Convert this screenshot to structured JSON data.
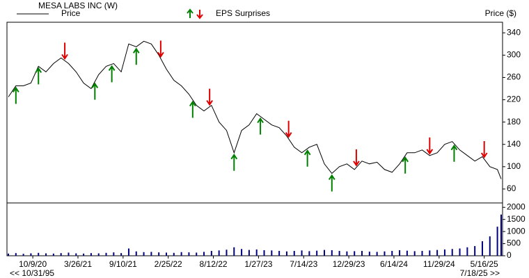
{
  "chart_data": {
    "type": "line",
    "title": "MESA LABS INC (W)",
    "y_label": "Price ($)",
    "eps_label": "EPS Surprises",
    "nav_start": "<< 10/31/95",
    "nav_end": "7/18/25 >>",
    "x": [
      "7/10/20",
      "8/7/20",
      "9/4/20",
      "10/2/20",
      "10/30/20",
      "11/27/20",
      "12/25/20",
      "1/22/21",
      "2/19/21",
      "3/19/21",
      "4/16/21",
      "5/14/21",
      "6/11/21",
      "7/9/21",
      "8/6/21",
      "9/3/21",
      "10/1/21",
      "10/29/21",
      "11/26/21",
      "12/24/21",
      "1/21/22",
      "2/18/22",
      "3/18/22",
      "4/15/22",
      "5/13/22",
      "6/10/22",
      "7/8/22",
      "8/5/22",
      "9/2/22",
      "9/30/22",
      "10/28/22",
      "11/25/22",
      "12/23/22",
      "1/20/23",
      "2/17/23",
      "3/17/23",
      "4/14/23",
      "5/12/23",
      "6/9/23",
      "7/7/23",
      "8/4/23",
      "9/1/23",
      "9/29/23",
      "10/27/23",
      "11/24/23",
      "12/22/23",
      "1/19/24",
      "2/16/24",
      "3/15/24",
      "4/12/24",
      "5/10/24",
      "6/7/24",
      "7/5/24",
      "8/2/24",
      "8/30/24",
      "9/27/24",
      "10/25/24",
      "11/22/24",
      "12/20/24",
      "1/17/25",
      "2/14/25",
      "3/14/25",
      "4/11/25",
      "5/9/25",
      "6/6/25",
      "7/4/25",
      "7/18/25"
    ],
    "series": [
      {
        "name": "Price",
        "color": "#000000",
        "values": [
          225,
          245,
          245,
          250,
          280,
          270,
          285,
          295,
          285,
          270,
          250,
          240,
          265,
          280,
          285,
          270,
          320,
          315,
          325,
          320,
          300,
          275,
          255,
          245,
          230,
          210,
          200,
          210,
          180,
          165,
          125,
          165,
          175,
          195,
          185,
          175,
          170,
          155,
          135,
          125,
          135,
          140,
          105,
          88,
          100,
          105,
          95,
          110,
          105,
          108,
          95,
          90,
          105,
          125,
          125,
          130,
          120,
          125,
          140,
          145,
          130,
          120,
          110,
          118,
          100,
          95,
          78
        ]
      }
    ],
    "xlim": [
      "7/10/20",
      "7/18/25"
    ],
    "xticks": [
      "10/9/20",
      "3/26/21",
      "9/10/21",
      "2/25/22",
      "8/12/22",
      "1/27/23",
      "7/14/23",
      "12/29/23",
      "6/14/24",
      "11/29/24",
      "5/16/25"
    ],
    "ylim": [
      35,
      359
    ],
    "yticks": [
      60,
      100,
      140,
      180,
      220,
      260,
      300,
      340
    ],
    "volume": {
      "color": "#000080",
      "values": [
        90,
        110,
        80,
        100,
        120,
        100,
        90,
        110,
        130,
        100,
        90,
        110,
        100,
        120,
        140,
        110,
        300,
        180,
        150,
        160,
        140,
        130,
        120,
        150,
        140,
        130,
        160,
        200,
        220,
        250,
        350,
        280,
        240,
        260,
        230,
        220,
        200,
        180,
        200,
        220,
        190,
        210,
        240,
        230,
        200,
        180,
        190,
        200,
        170,
        160,
        180,
        200,
        230,
        210,
        190,
        200,
        220,
        240,
        260,
        280,
        300,
        350,
        400,
        600,
        800,
        1200,
        1700
      ],
      "ylim": [
        0,
        2180
      ],
      "yticks": [
        0,
        500,
        1000,
        1500,
        2000
      ]
    },
    "eps_surprises": [
      {
        "x": "8/7/20",
        "color": "#008000"
      },
      {
        "x": "10/30/20",
        "color": "#008000"
      },
      {
        "x": "2/5/21",
        "color": "#e00000"
      },
      {
        "x": "5/28/21",
        "color": "#008000"
      },
      {
        "x": "7/30/21",
        "color": "#008000"
      },
      {
        "x": "10/29/21",
        "color": "#008000"
      },
      {
        "x": "1/28/22",
        "color": "#e00000"
      },
      {
        "x": "5/27/22",
        "color": "#008000"
      },
      {
        "x": "7/29/22",
        "color": "#e00000"
      },
      {
        "x": "10/28/22",
        "color": "#008000"
      },
      {
        "x": "2/3/23",
        "color": "#008000"
      },
      {
        "x": "5/19/23",
        "color": "#e00000"
      },
      {
        "x": "7/28/23",
        "color": "#008000"
      },
      {
        "x": "10/27/23",
        "color": "#008000"
      },
      {
        "x": "1/26/24",
        "color": "#e00000"
      },
      {
        "x": "7/26/24",
        "color": "#008000"
      },
      {
        "x": "10/25/24",
        "color": "#e00000"
      },
      {
        "x": "1/24/25",
        "color": "#008000"
      },
      {
        "x": "5/16/25",
        "color": "#e00000"
      }
    ]
  }
}
